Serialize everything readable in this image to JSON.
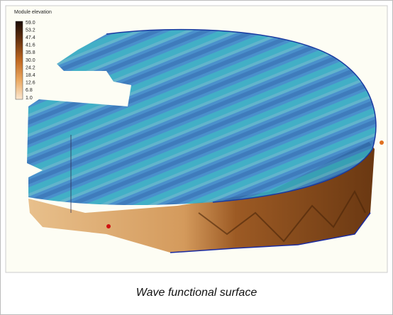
{
  "legend": {
    "title": "Module elevation",
    "ticks": [
      "59.0",
      "53.2",
      "47.4",
      "41.6",
      "35.8",
      "30.0",
      "24.2",
      "18.4",
      "12.6",
      "6.8",
      "1.0"
    ]
  },
  "caption": "Wave functional surface"
}
